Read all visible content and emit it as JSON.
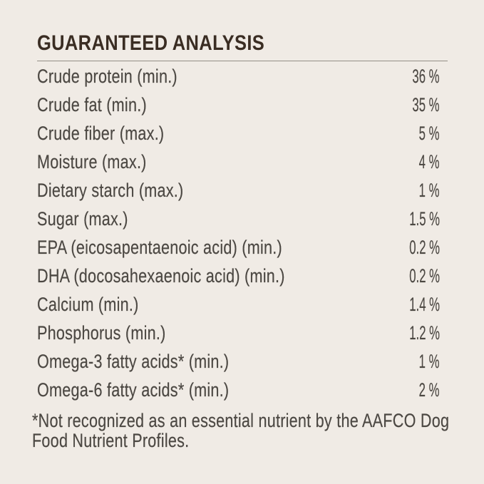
{
  "title": "GUARANTEED ANALYSIS",
  "rows": [
    {
      "label": "Crude protein (min.)",
      "value": "36 %"
    },
    {
      "label": "Crude fat (min.)",
      "value": "35 %"
    },
    {
      "label": "Crude fiber (max.)",
      "value": "5 %"
    },
    {
      "label": "Moisture (max.)",
      "value": "4 %"
    },
    {
      "label": "Dietary starch (max.)",
      "value": "1 %"
    },
    {
      "label": "Sugar (max.)",
      "value": "1.5 %"
    },
    {
      "label": "EPA (eicosapentaenoic acid) (min.)",
      "value": "0.2 %"
    },
    {
      "label": "DHA (docosahexaenoic acid) (min.)",
      "value": "0.2 %"
    },
    {
      "label": "Calcium (min.)",
      "value": "1.4 %"
    },
    {
      "label": "Phosphorus (min.)",
      "value": "1.2 %"
    },
    {
      "label": "Omega-3 fatty acids* (min.)",
      "value": "1 %"
    },
    {
      "label": "Omega-6 fatty acids* (min.)",
      "value": "2 %"
    }
  ],
  "footnote": "*Not recognized as an essential nutrient by the AAFCO Dog\nFood Nutrient Profiles.",
  "colors": {
    "background": "#f0ebe5",
    "title_text": "#3a2d23",
    "body_text": "#4c4843",
    "rule": "#948e86"
  }
}
